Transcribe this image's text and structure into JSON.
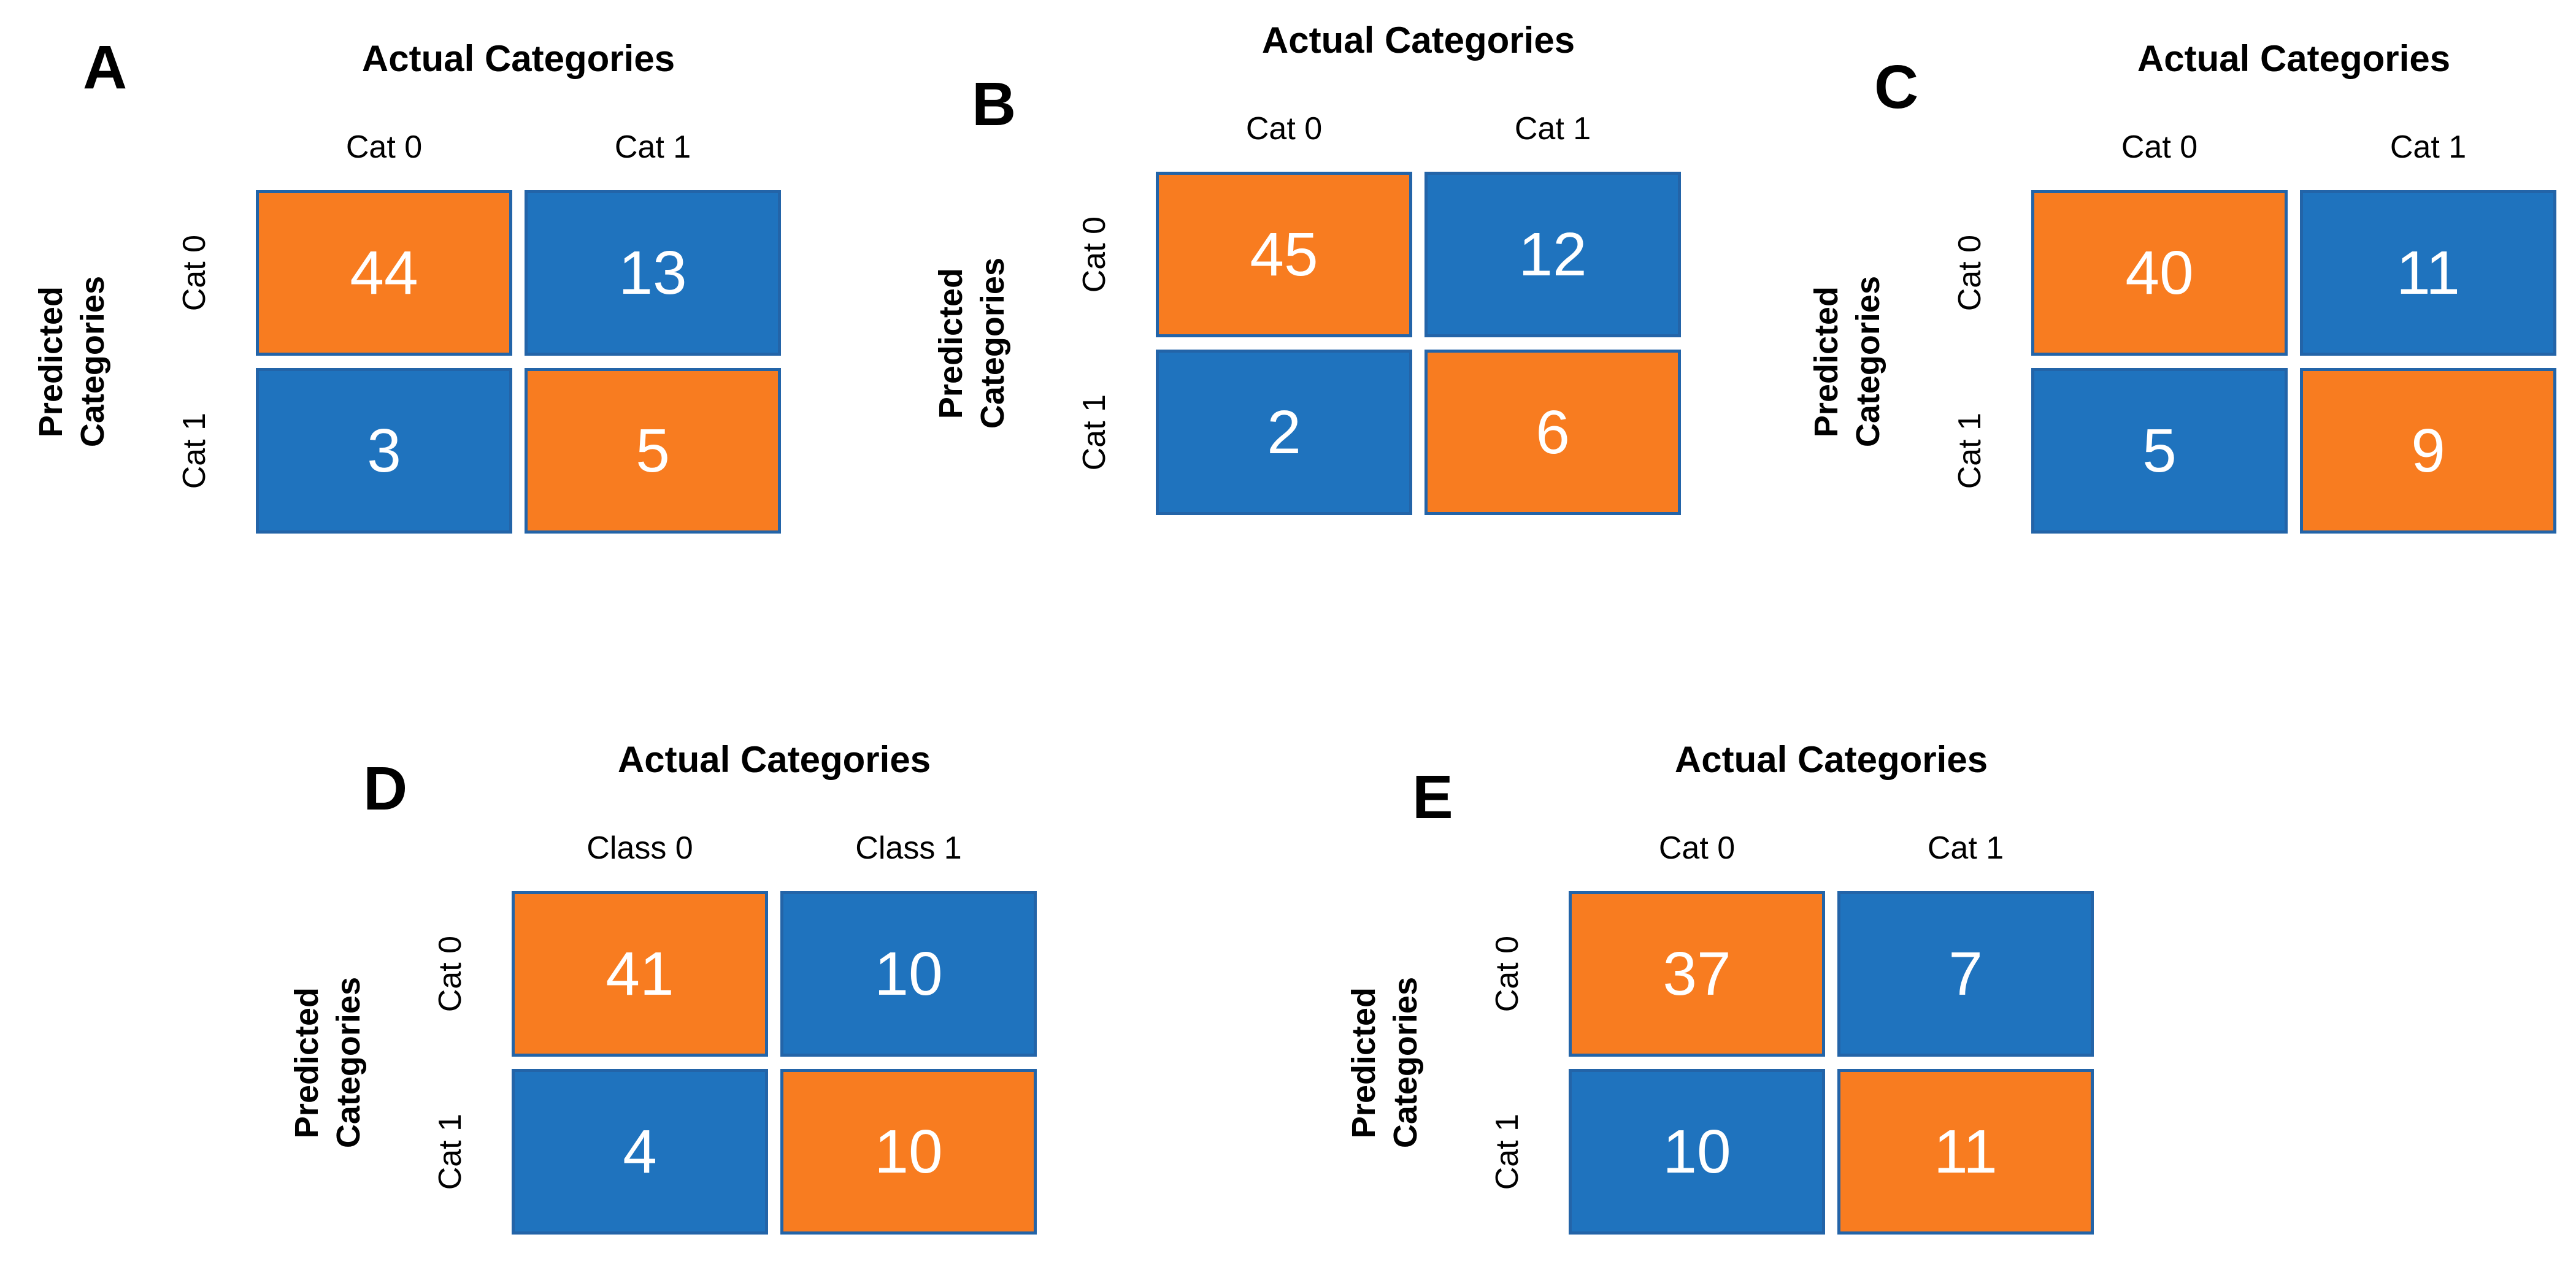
{
  "colors": {
    "orange": "#F87C20",
    "blue": "#1F73BE",
    "cell_border": "#2364A8",
    "label_text": "#000000",
    "cell_text": "#FFFFFF",
    "background": "#FFFFFF"
  },
  "chart_data": [
    {
      "type": "heatmap",
      "panel": "A",
      "title": "Actual Categories",
      "xlabel": "Actual Categories",
      "ylabel": "Predicted Categories",
      "ylabel_lines": [
        "Predicted",
        "Categories"
      ],
      "x_labels": [
        "Cat 0",
        "Cat 1"
      ],
      "y_labels": [
        "Cat 0",
        "Cat 1"
      ],
      "values": [
        [
          44,
          13
        ],
        [
          3,
          5
        ]
      ],
      "cell_colors": [
        [
          "orange",
          "blue"
        ],
        [
          "blue",
          "orange"
        ]
      ]
    },
    {
      "type": "heatmap",
      "panel": "B",
      "title": "Actual Categories",
      "xlabel": "Actual Categories",
      "ylabel": "Predicted Categories",
      "ylabel_lines": [
        "Predicted",
        "Categories"
      ],
      "x_labels": [
        "Cat 0",
        "Cat 1"
      ],
      "y_labels": [
        "Cat 0",
        "Cat 1"
      ],
      "values": [
        [
          45,
          12
        ],
        [
          2,
          6
        ]
      ],
      "cell_colors": [
        [
          "orange",
          "blue"
        ],
        [
          "blue",
          "orange"
        ]
      ]
    },
    {
      "type": "heatmap",
      "panel": "C",
      "title": "Actual Categories",
      "xlabel": "Actual Categories",
      "ylabel": "Predicted Categories",
      "ylabel_lines": [
        "Predicted",
        "Categories"
      ],
      "x_labels": [
        "Cat 0",
        "Cat 1"
      ],
      "y_labels": [
        "Cat 0",
        "Cat 1"
      ],
      "values": [
        [
          40,
          11
        ],
        [
          5,
          9
        ]
      ],
      "cell_colors": [
        [
          "orange",
          "blue"
        ],
        [
          "blue",
          "orange"
        ]
      ]
    },
    {
      "type": "heatmap",
      "panel": "D",
      "title": "Actual Categories",
      "xlabel": "Actual Categories",
      "ylabel": "Predicted Categories",
      "ylabel_lines": [
        "Predicted",
        "Categories"
      ],
      "x_labels": [
        "Class 0",
        "Class 1"
      ],
      "y_labels": [
        "Cat 0",
        "Cat 1"
      ],
      "values": [
        [
          41,
          10
        ],
        [
          4,
          10
        ]
      ],
      "cell_colors": [
        [
          "orange",
          "blue"
        ],
        [
          "blue",
          "orange"
        ]
      ]
    },
    {
      "type": "heatmap",
      "panel": "E",
      "title": "Actual Categories",
      "xlabel": "Actual Categories",
      "ylabel": "Predicted Categories",
      "ylabel_lines": [
        "Predicted",
        "Categories"
      ],
      "x_labels": [
        "Cat 0",
        "Cat 1"
      ],
      "y_labels": [
        "Cat 0",
        "Cat 1"
      ],
      "values": [
        [
          37,
          7
        ],
        [
          10,
          11
        ]
      ],
      "cell_colors": [
        [
          "orange",
          "blue"
        ],
        [
          "blue",
          "orange"
        ]
      ]
    }
  ]
}
